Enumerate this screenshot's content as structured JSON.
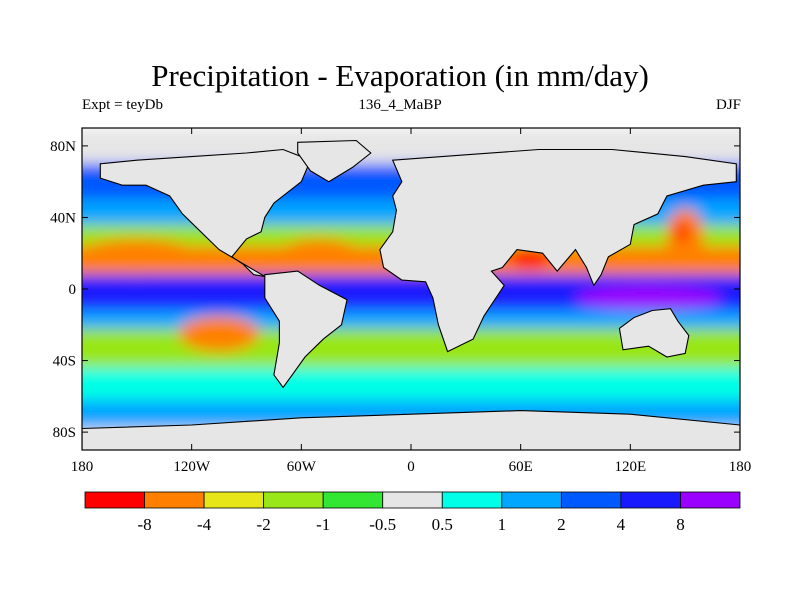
{
  "title": "Precipitation - Evaporation (in mm/day)",
  "subtitle": {
    "left": "Expt = teyDb",
    "center": "136_4_MaBP",
    "right": "DJF"
  },
  "map": {
    "lon_range": [
      -180,
      180
    ],
    "lat_range": [
      -90,
      90
    ],
    "lon_ticks": [
      {
        "value": -180,
        "label": "180"
      },
      {
        "value": -120,
        "label": "120W"
      },
      {
        "value": -60,
        "label": "60W"
      },
      {
        "value": 0,
        "label": "0"
      },
      {
        "value": 60,
        "label": "60E"
      },
      {
        "value": 120,
        "label": "120E"
      },
      {
        "value": 180,
        "label": "180"
      }
    ],
    "lat_ticks": [
      {
        "value": 80,
        "label": "80N"
      },
      {
        "value": 40,
        "label": "40N"
      },
      {
        "value": 0,
        "label": "0"
      },
      {
        "value": -40,
        "label": "40S"
      },
      {
        "value": -80,
        "label": "80S"
      }
    ],
    "ocean_color": "#e6e6e6"
  },
  "colorbar": {
    "colors": [
      "#ff0000",
      "#ff8000",
      "#e6e619",
      "#99e619",
      "#33e633",
      "#e6e6e6",
      "#00ffe6",
      "#00a6ff",
      "#0059ff",
      "#1a1aff",
      "#9900ff"
    ],
    "labels": [
      "-8",
      "-4",
      "-2",
      "-1",
      "-0.5",
      "0.5",
      "1",
      "2",
      "4",
      "8"
    ]
  },
  "field_bands": [
    {
      "name": "arctic-white",
      "lat_top": 90,
      "lat_bottom": 70,
      "color": "#e6e6e6"
    },
    {
      "name": "north-blue",
      "lat_top": 70,
      "lat_bottom": 50,
      "color": "#0059ff"
    },
    {
      "name": "north-cyan",
      "lat_top": 50,
      "lat_bottom": 36,
      "color": "#00a6ff"
    },
    {
      "name": "north-green",
      "lat_top": 36,
      "lat_bottom": 24,
      "color": "#99e619"
    },
    {
      "name": "subtropic-orange",
      "lat_top": 24,
      "lat_bottom": 8,
      "color": "#ff8000"
    },
    {
      "name": "itcz-blue",
      "lat_top": 8,
      "lat_bottom": -12,
      "color": "#1a1aff"
    },
    {
      "name": "south-cyan",
      "lat_top": -12,
      "lat_bottom": -22,
      "color": "#00a6ff"
    },
    {
      "name": "south-subtropic-green",
      "lat_top": -22,
      "lat_bottom": -44,
      "color": "#99e619"
    },
    {
      "name": "southern-cyan",
      "lat_top": -44,
      "lat_bottom": -62,
      "color": "#00ffe6"
    },
    {
      "name": "southern-blue",
      "lat_top": -62,
      "lat_bottom": -78,
      "color": "#00a6ff"
    },
    {
      "name": "antarctic-white",
      "lat_top": -78,
      "lat_bottom": -90,
      "color": "#e6e6e6"
    }
  ],
  "field_blobs": [
    {
      "name": "north-pacific-orange",
      "lon": -150,
      "lat": 18,
      "rx": 35,
      "ry": 10,
      "color": "#ff8000"
    },
    {
      "name": "north-atlantic-orange",
      "lon": -50,
      "lat": 20,
      "rx": 22,
      "ry": 8,
      "color": "#ff8000"
    },
    {
      "name": "south-pacific-orange",
      "lon": -105,
      "lat": -25,
      "rx": 22,
      "ry": 10,
      "color": "#ff8000"
    },
    {
      "name": "west-pacific-purple",
      "lon": 130,
      "lat": -5,
      "rx": 40,
      "ry": 7,
      "color": "#9900ff"
    },
    {
      "name": "indian-ocean-red",
      "lon": 65,
      "lat": 18,
      "rx": 12,
      "ry": 6,
      "color": "#ff0000"
    },
    {
      "name": "north-pacific-east-orange",
      "lon": 150,
      "lat": 30,
      "rx": 10,
      "ry": 15,
      "color": "#ff8000"
    },
    {
      "name": "north-pacific-east-red",
      "lon": 148,
      "lat": 32,
      "rx": 4,
      "ry": 5,
      "color": "#ff0000"
    },
    {
      "name": "arctic-blue",
      "lon": 90,
      "lat": 62,
      "rx": 55,
      "ry": 8,
      "color": "#1a1aff"
    }
  ],
  "land": [
    {
      "name": "north-america",
      "color": "#e6e6e6",
      "points": [
        [
          -170,
          70
        ],
        [
          -150,
          72
        ],
        [
          -120,
          74
        ],
        [
          -90,
          76
        ],
        [
          -70,
          78
        ],
        [
          -55,
          72
        ],
        [
          -60,
          60
        ],
        [
          -75,
          48
        ],
        [
          -80,
          40
        ],
        [
          -82,
          32
        ],
        [
          -90,
          28
        ],
        [
          -98,
          18
        ],
        [
          -92,
          14
        ],
        [
          -86,
          8
        ],
        [
          -80,
          7
        ],
        [
          -95,
          16
        ],
        [
          -105,
          22
        ],
        [
          -115,
          32
        ],
        [
          -125,
          42
        ],
        [
          -132,
          52
        ],
        [
          -145,
          58
        ],
        [
          -158,
          58
        ],
        [
          -170,
          62
        ]
      ]
    },
    {
      "name": "greenland",
      "color": "#e6e6e6",
      "points": [
        [
          -62,
          82
        ],
        [
          -30,
          83
        ],
        [
          -22,
          76
        ],
        [
          -32,
          68
        ],
        [
          -45,
          60
        ],
        [
          -55,
          66
        ],
        [
          -62,
          76
        ]
      ]
    },
    {
      "name": "south-america",
      "color": "#e6e6e6",
      "points": [
        [
          -80,
          8
        ],
        [
          -62,
          10
        ],
        [
          -50,
          2
        ],
        [
          -35,
          -6
        ],
        [
          -38,
          -20
        ],
        [
          -48,
          -28
        ],
        [
          -58,
          -38
        ],
        [
          -65,
          -48
        ],
        [
          -70,
          -55
        ],
        [
          -75,
          -48
        ],
        [
          -72,
          -30
        ],
        [
          -72,
          -18
        ],
        [
          -80,
          -5
        ]
      ]
    },
    {
      "name": "eurasia-africa",
      "color": "#e6e6e6",
      "points": [
        [
          -10,
          72
        ],
        [
          30,
          75
        ],
        [
          70,
          78
        ],
        [
          110,
          78
        ],
        [
          150,
          74
        ],
        [
          178,
          70
        ],
        [
          178,
          60
        ],
        [
          160,
          58
        ],
        [
          140,
          52
        ],
        [
          135,
          42
        ],
        [
          122,
          36
        ],
        [
          120,
          25
        ],
        [
          108,
          18
        ],
        [
          104,
          8
        ],
        [
          100,
          2
        ],
        [
          96,
          12
        ],
        [
          90,
          22
        ],
        [
          80,
          10
        ],
        [
          72,
          20
        ],
        [
          58,
          22
        ],
        [
          50,
          12
        ],
        [
          44,
          10
        ],
        [
          51,
          2
        ],
        [
          40,
          -15
        ],
        [
          34,
          -28
        ],
        [
          20,
          -35
        ],
        [
          15,
          -20
        ],
        [
          12,
          -5
        ],
        [
          8,
          4
        ],
        [
          -5,
          5
        ],
        [
          -15,
          12
        ],
        [
          -17,
          22
        ],
        [
          -10,
          32
        ],
        [
          -8,
          44
        ],
        [
          -10,
          52
        ],
        [
          -5,
          60
        ]
      ]
    },
    {
      "name": "australia",
      "color": "#e6e6e6",
      "points": [
        [
          114,
          -22
        ],
        [
          122,
          -16
        ],
        [
          132,
          -12
        ],
        [
          142,
          -11
        ],
        [
          146,
          -18
        ],
        [
          152,
          -26
        ],
        [
          150,
          -36
        ],
        [
          140,
          -38
        ],
        [
          130,
          -32
        ],
        [
          116,
          -34
        ]
      ]
    },
    {
      "name": "antarctica",
      "color": "#e6e6e6",
      "points": [
        [
          -180,
          -78
        ],
        [
          -120,
          -76
        ],
        [
          -60,
          -72
        ],
        [
          0,
          -70
        ],
        [
          60,
          -68
        ],
        [
          120,
          -70
        ],
        [
          180,
          -76
        ],
        [
          180,
          -90
        ],
        [
          -180,
          -90
        ]
      ]
    }
  ]
}
